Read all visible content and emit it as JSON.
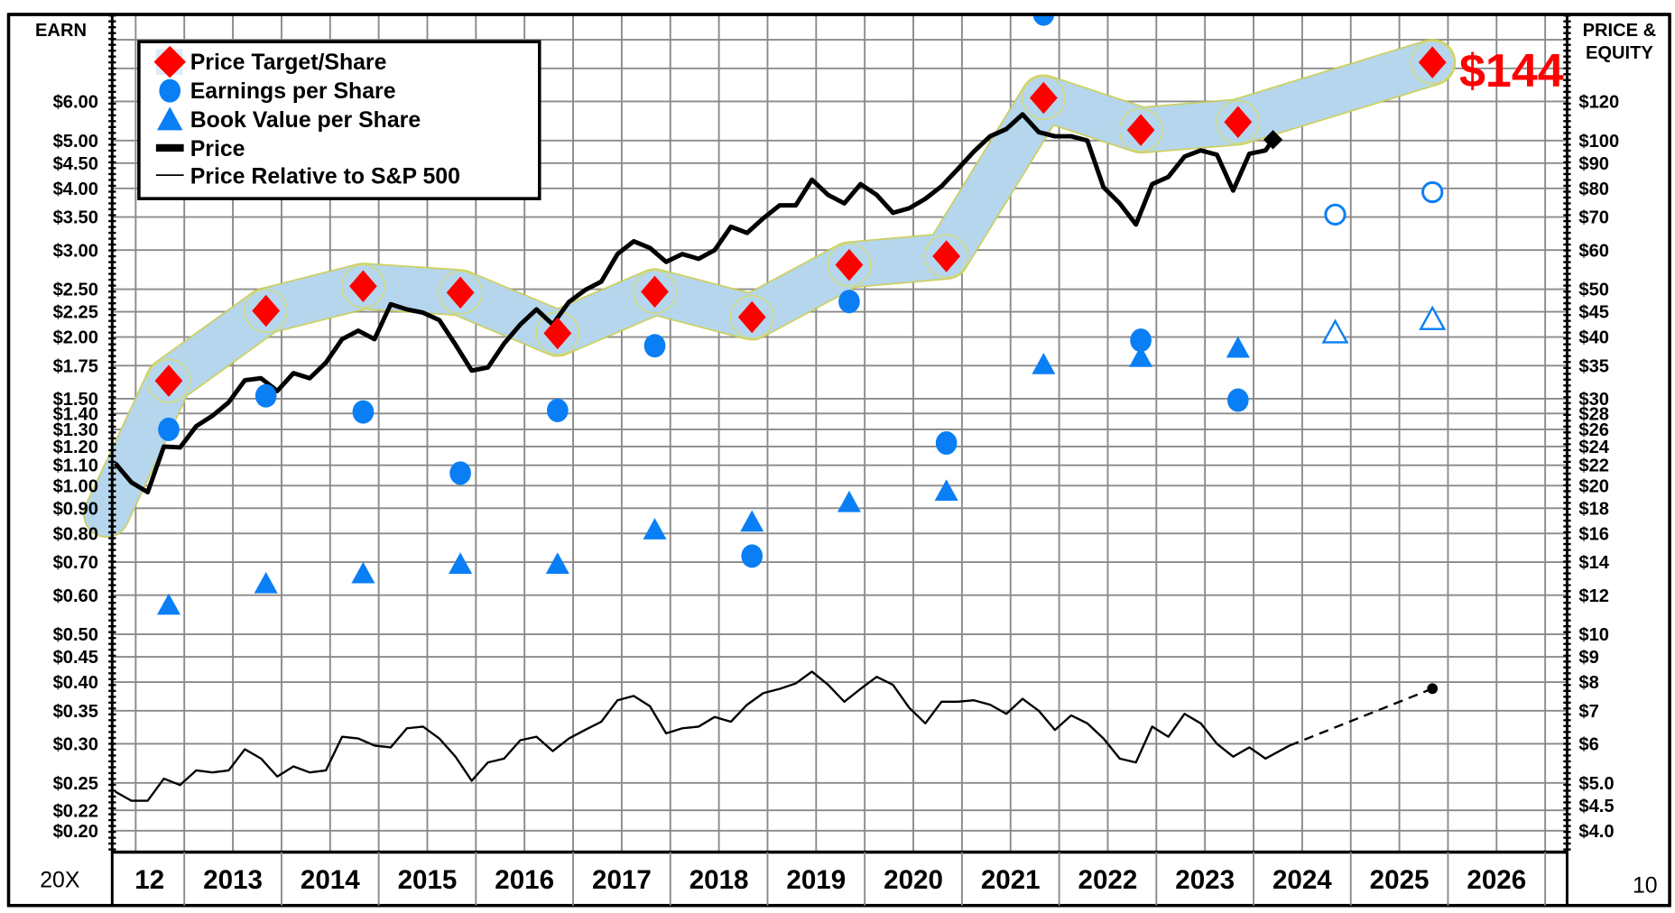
{
  "chart_data": {
    "type": "line",
    "title": "",
    "left_axis": {
      "label": "EARN",
      "scale": "log",
      "ticks": [
        {
          "label": "$6.00",
          "value": 6
        },
        {
          "label": "$5.00",
          "value": 5
        },
        {
          "label": "$4.50",
          "value": 4.5
        },
        {
          "label": "$4.00",
          "value": 4
        },
        {
          "label": "$3.50",
          "value": 3.5
        },
        {
          "label": "$3.00",
          "value": 3
        },
        {
          "label": "$2.50",
          "value": 2.5
        },
        {
          "label": "$2.25",
          "value": 2.25
        },
        {
          "label": "$2.00",
          "value": 2
        },
        {
          "label": "$1.75",
          "value": 1.75
        },
        {
          "label": "$1.50",
          "value": 1.5
        },
        {
          "label": "$1.40",
          "value": 1.4
        },
        {
          "label": "$1.30",
          "value": 1.3
        },
        {
          "label": "$1.20",
          "value": 1.2
        },
        {
          "label": "$1.10",
          "value": 1.1
        },
        {
          "label": "$1.00",
          "value": 1
        },
        {
          "label": "$0.90",
          "value": 0.9
        },
        {
          "label": "$0.80",
          "value": 0.8
        },
        {
          "label": "$0.70",
          "value": 0.7
        },
        {
          "label": "$0.60",
          "value": 0.6
        },
        {
          "label": "$0.50",
          "value": 0.5
        },
        {
          "label": "$0.45",
          "value": 0.45
        },
        {
          "label": "$0.40",
          "value": 0.4
        },
        {
          "label": "$0.35",
          "value": 0.35
        },
        {
          "label": "$0.30",
          "value": 0.3
        },
        {
          "label": "$0.25",
          "value": 0.25
        },
        {
          "label": "$0.22",
          "value": 0.22
        },
        {
          "label": "$0.20",
          "value": 0.2
        }
      ]
    },
    "right_axis": {
      "label_lines": [
        "PRICE &",
        "EQUITY"
      ],
      "scale": "log",
      "ticks": [
        {
          "label": "$120",
          "value": 120
        },
        {
          "label": "$100",
          "value": 100
        },
        {
          "label": "$90",
          "value": 90
        },
        {
          "label": "$80",
          "value": 80
        },
        {
          "label": "$70",
          "value": 70
        },
        {
          "label": "$60",
          "value": 60
        },
        {
          "label": "$50",
          "value": 50
        },
        {
          "label": "$45",
          "value": 45
        },
        {
          "label": "$40",
          "value": 40
        },
        {
          "label": "$35",
          "value": 35
        },
        {
          "label": "$30",
          "value": 30
        },
        {
          "label": "$28",
          "value": 28
        },
        {
          "label": "$26",
          "value": 26
        },
        {
          "label": "$24",
          "value": 24
        },
        {
          "label": "$22",
          "value": 22
        },
        {
          "label": "$20",
          "value": 20
        },
        {
          "label": "$18",
          "value": 18
        },
        {
          "label": "$16",
          "value": 16
        },
        {
          "label": "$14",
          "value": 14
        },
        {
          "label": "$12",
          "value": 12
        },
        {
          "label": "$10",
          "value": 10
        },
        {
          "label": "$9",
          "value": 9
        },
        {
          "label": "$8",
          "value": 8
        },
        {
          "label": "$7",
          "value": 7
        },
        {
          "label": "$6",
          "value": 6
        },
        {
          "label": "$5.0",
          "value": 5
        },
        {
          "label": "$4.5",
          "value": 4.5
        },
        {
          "label": "$4.0",
          "value": 4
        }
      ]
    },
    "x_categories": [
      "12",
      "2013",
      "2014",
      "2015",
      "2016",
      "2017",
      "2018",
      "2019",
      "2020",
      "2021",
      "2022",
      "2023",
      "2024",
      "2025",
      "2026"
    ],
    "x_range": [
      2012.36,
      2027.24
    ],
    "grid": true,
    "legend_placement": "top-left",
    "legend": [
      {
        "label": "Price Target/Share",
        "symbol": "diamond"
      },
      {
        "label": "Earnings per Share",
        "symbol": "circle"
      },
      {
        "label": "Book Value per Share",
        "symbol": "triangle"
      },
      {
        "label": "Price",
        "symbol": "thick-line"
      },
      {
        "label": "Price Relative to S&P 500",
        "symbol": "thin-line"
      }
    ],
    "colors": {
      "target": "#ff0000",
      "eps": "#0a7ff5",
      "bvps": "#0a7ff5",
      "band": "#b3d6f6",
      "band_edge": "#c9cc55",
      "price": "#000000"
    },
    "price_target_label": "$144",
    "footer_left": "20X",
    "footer_right": "10",
    "series": {
      "price_target": {
        "band_start": {
          "t": 2012.2,
          "value": 17.5
        },
        "points": [
          {
            "t": 2012.84,
            "value": 32.6
          },
          {
            "t": 2013.84,
            "value": 45.2
          },
          {
            "t": 2014.84,
            "value": 50.7
          },
          {
            "t": 2015.84,
            "value": 49.2
          },
          {
            "t": 2016.84,
            "value": 40.7
          },
          {
            "t": 2017.84,
            "value": 49.4
          },
          {
            "t": 2018.84,
            "value": 43.9
          },
          {
            "t": 2019.84,
            "value": 56.0
          },
          {
            "t": 2020.84,
            "value": 58.3
          },
          {
            "t": 2021.84,
            "value": 122
          },
          {
            "t": 2022.84,
            "value": 105
          },
          {
            "t": 2023.84,
            "value": 109
          },
          {
            "t": 2025.84,
            "value": 144
          }
        ]
      },
      "eps": [
        {
          "t": 2012.84,
          "value": 1.3
        },
        {
          "t": 2013.84,
          "value": 1.52
        },
        {
          "t": 2014.84,
          "value": 1.41
        },
        {
          "t": 2015.84,
          "value": 1.06
        },
        {
          "t": 2016.84,
          "value": 1.42
        },
        {
          "t": 2017.84,
          "value": 1.92
        },
        {
          "t": 2018.84,
          "value": 0.72
        },
        {
          "t": 2019.84,
          "value": 2.36
        },
        {
          "t": 2020.84,
          "value": 1.22
        },
        {
          "t": 2021.84,
          "value": 9.02
        },
        {
          "t": 2022.84,
          "value": 1.97
        },
        {
          "t": 2023.84,
          "value": 1.49
        },
        {
          "t": 2024.84,
          "value": 3.54,
          "estimate": true
        },
        {
          "t": 2025.84,
          "value": 3.93,
          "estimate": true
        }
      ],
      "bvps": [
        {
          "t": 2012.84,
          "value": 0.57
        },
        {
          "t": 2013.84,
          "value": 0.63
        },
        {
          "t": 2014.84,
          "value": 0.66
        },
        {
          "t": 2015.84,
          "value": 0.69
        },
        {
          "t": 2016.84,
          "value": 0.69
        },
        {
          "t": 2017.84,
          "value": 0.81
        },
        {
          "t": 2018.84,
          "value": 0.84
        },
        {
          "t": 2019.84,
          "value": 0.92
        },
        {
          "t": 2020.84,
          "value": 0.97
        },
        {
          "t": 2021.84,
          "value": 1.75
        },
        {
          "t": 2022.84,
          "value": 1.81
        },
        {
          "t": 2023.84,
          "value": 1.89
        },
        {
          "t": 2024.84,
          "value": 2.03,
          "estimate": true
        },
        {
          "t": 2025.84,
          "value": 2.16,
          "estimate": true
        }
      ],
      "price": {
        "start": 2012.29,
        "points_per_year": 6,
        "values": [
          22.2,
          20.3,
          19.4,
          24.0,
          23.9,
          26.4,
          27.7,
          29.5,
          32.7,
          33.0,
          31.1,
          33.8,
          33.0,
          35.5,
          39.6,
          41.2,
          39.6,
          46.6,
          45.5,
          44.8,
          43.3,
          38.6,
          34.2,
          34.7,
          38.8,
          42.4,
          45.5,
          42.4,
          47.1,
          49.8,
          51.8,
          58.9,
          62.5,
          60.6,
          56.8,
          58.9,
          57.6,
          60.0,
          66.9,
          65.0,
          69.6,
          73.9,
          73.9,
          83.3,
          77.6,
          74.6,
          81.6,
          77.6,
          71.4,
          72.9,
          76.2,
          80.8,
          87.5,
          95.0,
          102,
          105.5,
          113,
          104,
          102,
          102,
          100,
          80.4,
          74.6,
          67.6,
          81.6,
          84.4,
          92.8,
          95.5,
          93.6,
          79.2,
          94.0,
          95.5
        ],
        "current": {
          "t": 2024.2,
          "value": 100.4
        }
      },
      "relative_to_sp500": {
        "start": 2012.29,
        "points_per_year": 6,
        "values": [
          4.8,
          4.6,
          4.6,
          5.1,
          4.95,
          5.3,
          5.25,
          5.3,
          5.85,
          5.6,
          5.15,
          5.4,
          5.25,
          5.3,
          6.2,
          6.15,
          5.95,
          5.9,
          6.45,
          6.5,
          6.15,
          5.65,
          5.05,
          5.5,
          5.6,
          6.1,
          6.2,
          5.8,
          6.15,
          6.4,
          6.65,
          7.35,
          7.5,
          7.15,
          6.3,
          6.45,
          6.5,
          6.8,
          6.65,
          7.2,
          7.6,
          7.75,
          7.95,
          8.4,
          7.9,
          7.3,
          7.75,
          8.2,
          7.9,
          7.1,
          6.6,
          7.3,
          7.3,
          7.35,
          7.2,
          6.9,
          7.4,
          7.0,
          6.4,
          6.85,
          6.6,
          6.15,
          5.6,
          5.5,
          6.5,
          6.2,
          6.9,
          6.6,
          6.0,
          5.65,
          5.9,
          5.6
        ],
        "last": {
          "t": 2024.37,
          "value": 5.95
        },
        "projection": {
          "t": 2025.84,
          "value": 7.76
        }
      }
    }
  }
}
